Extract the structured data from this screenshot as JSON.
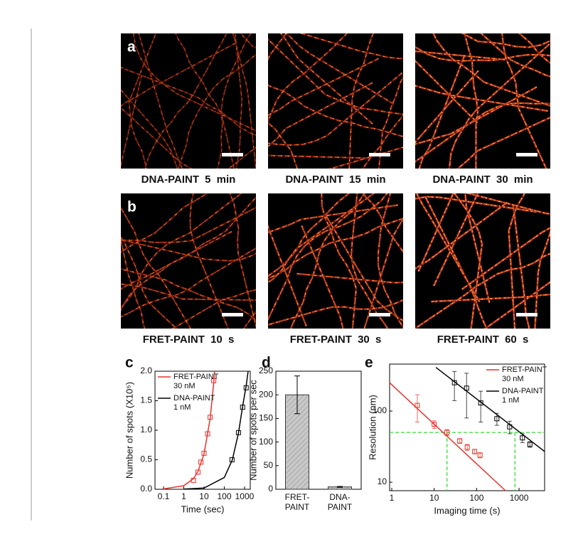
{
  "figure": {
    "panels": [
      {
        "label": "a",
        "captions": [
          "DNA-PAINT 5 min",
          "DNA-PAINT 15 min",
          "DNA-PAINT 30 min"
        ]
      },
      {
        "label": "b",
        "captions": [
          "FRET-PAINT 10 s",
          "FRET-PAINT 30 s",
          "FRET-PAINT 60 s"
        ]
      }
    ]
  },
  "chart_data": [
    {
      "type": "scatter",
      "panel_label": "c",
      "x_label": "Time (sec)",
      "y_label": "Number of spots (X10⁵)",
      "xscale": "log",
      "xlim": [
        0.038,
        1910
      ],
      "xticks": [
        0.1,
        1,
        10,
        100,
        1000
      ],
      "ylim": [
        0,
        2.0
      ],
      "yticks": [
        {
          "value": 0,
          "label": "0.0"
        },
        0.5,
        {
          "value": 1,
          "label": "1.0"
        },
        1.5,
        {
          "value": 2,
          "label": "2.0"
        }
      ],
      "legend": "upper left",
      "series": [
        {
          "name": "FRET-PAINT",
          "note": "30 nM",
          "color": "#e8322a",
          "x": [
            3,
            5,
            7,
            10,
            15,
            20,
            30
          ],
          "values": [
            0.15,
            0.29,
            0.46,
            0.61,
            0.94,
            1.22,
            1.84
          ],
          "fit_x": [
            0.1,
            1,
            3,
            5,
            10,
            20,
            30,
            33
          ],
          "fit_values": [
            0.006,
            0.06,
            0.18,
            0.3,
            0.6,
            1.2,
            1.8,
            2.0
          ]
        },
        {
          "name": "DNA-PAINT",
          "note": "1 nM",
          "color": "#000000",
          "x": [
            240,
            500,
            800,
            1200
          ],
          "values": [
            0.5,
            0.96,
            1.39,
            1.72
          ],
          "fit_x": [
            1,
            10,
            100,
            250,
            500,
            800,
            1200,
            1500
          ],
          "fit_values": [
            0.002,
            0.02,
            0.2,
            0.5,
            0.95,
            1.4,
            1.75,
            2.0
          ]
        }
      ]
    },
    {
      "type": "bar",
      "panel_label": "d",
      "y_label": "Number of spots per sec",
      "categories": [
        [
          "FRET-",
          "PAINT"
        ],
        [
          "DNA-",
          "PAINT"
        ]
      ],
      "values": [
        200,
        5
      ],
      "errors": [
        40,
        1
      ],
      "color": "#c8c8c8",
      "ylim": [
        0,
        250
      ],
      "yticks": [
        0,
        50,
        100,
        150,
        200,
        250
      ]
    },
    {
      "type": "scatter",
      "panel_label": "e",
      "x_label": "Imaging time (s)",
      "y_label": "Resolution (nm)",
      "xscale": "log",
      "yscale": "log",
      "xlim": [
        0.89,
        4000
      ],
      "xticks": [
        1,
        10,
        100,
        1000
      ],
      "ylim": [
        7.6,
        457
      ],
      "yticks": [
        10,
        100
      ],
      "legend": "upper right",
      "series": [
        {
          "name": "FRET-PAINT",
          "note": "30 nM",
          "color": "#e8322a",
          "x": [
            4,
            10,
            20,
            40,
            60,
            90,
            120
          ],
          "values": [
            120,
            65,
            50,
            38,
            31,
            27,
            24
          ],
          "errors": [
            50,
            8,
            5,
            3,
            3,
            2,
            2
          ],
          "fit_x": [
            0.89,
            480
          ],
          "fit_values": [
            250,
            7.6
          ]
        },
        {
          "name": "DNA-PAINT",
          "note": "1 nM",
          "color": "#000000",
          "x": [
            30,
            58,
            125,
            300,
            600,
            1200,
            1800
          ],
          "values": [
            250,
            210,
            130,
            78,
            60,
            42,
            34
          ],
          "errors": [
            110,
            130,
            60,
            15,
            12,
            6,
            3
          ],
          "fit_x": [
            11,
            4000
          ],
          "fit_values": [
            410,
            27
          ]
        }
      ],
      "reference_lines": {
        "color": "#33dd33",
        "y": 50,
        "x": [
          20,
          800
        ]
      }
    }
  ]
}
